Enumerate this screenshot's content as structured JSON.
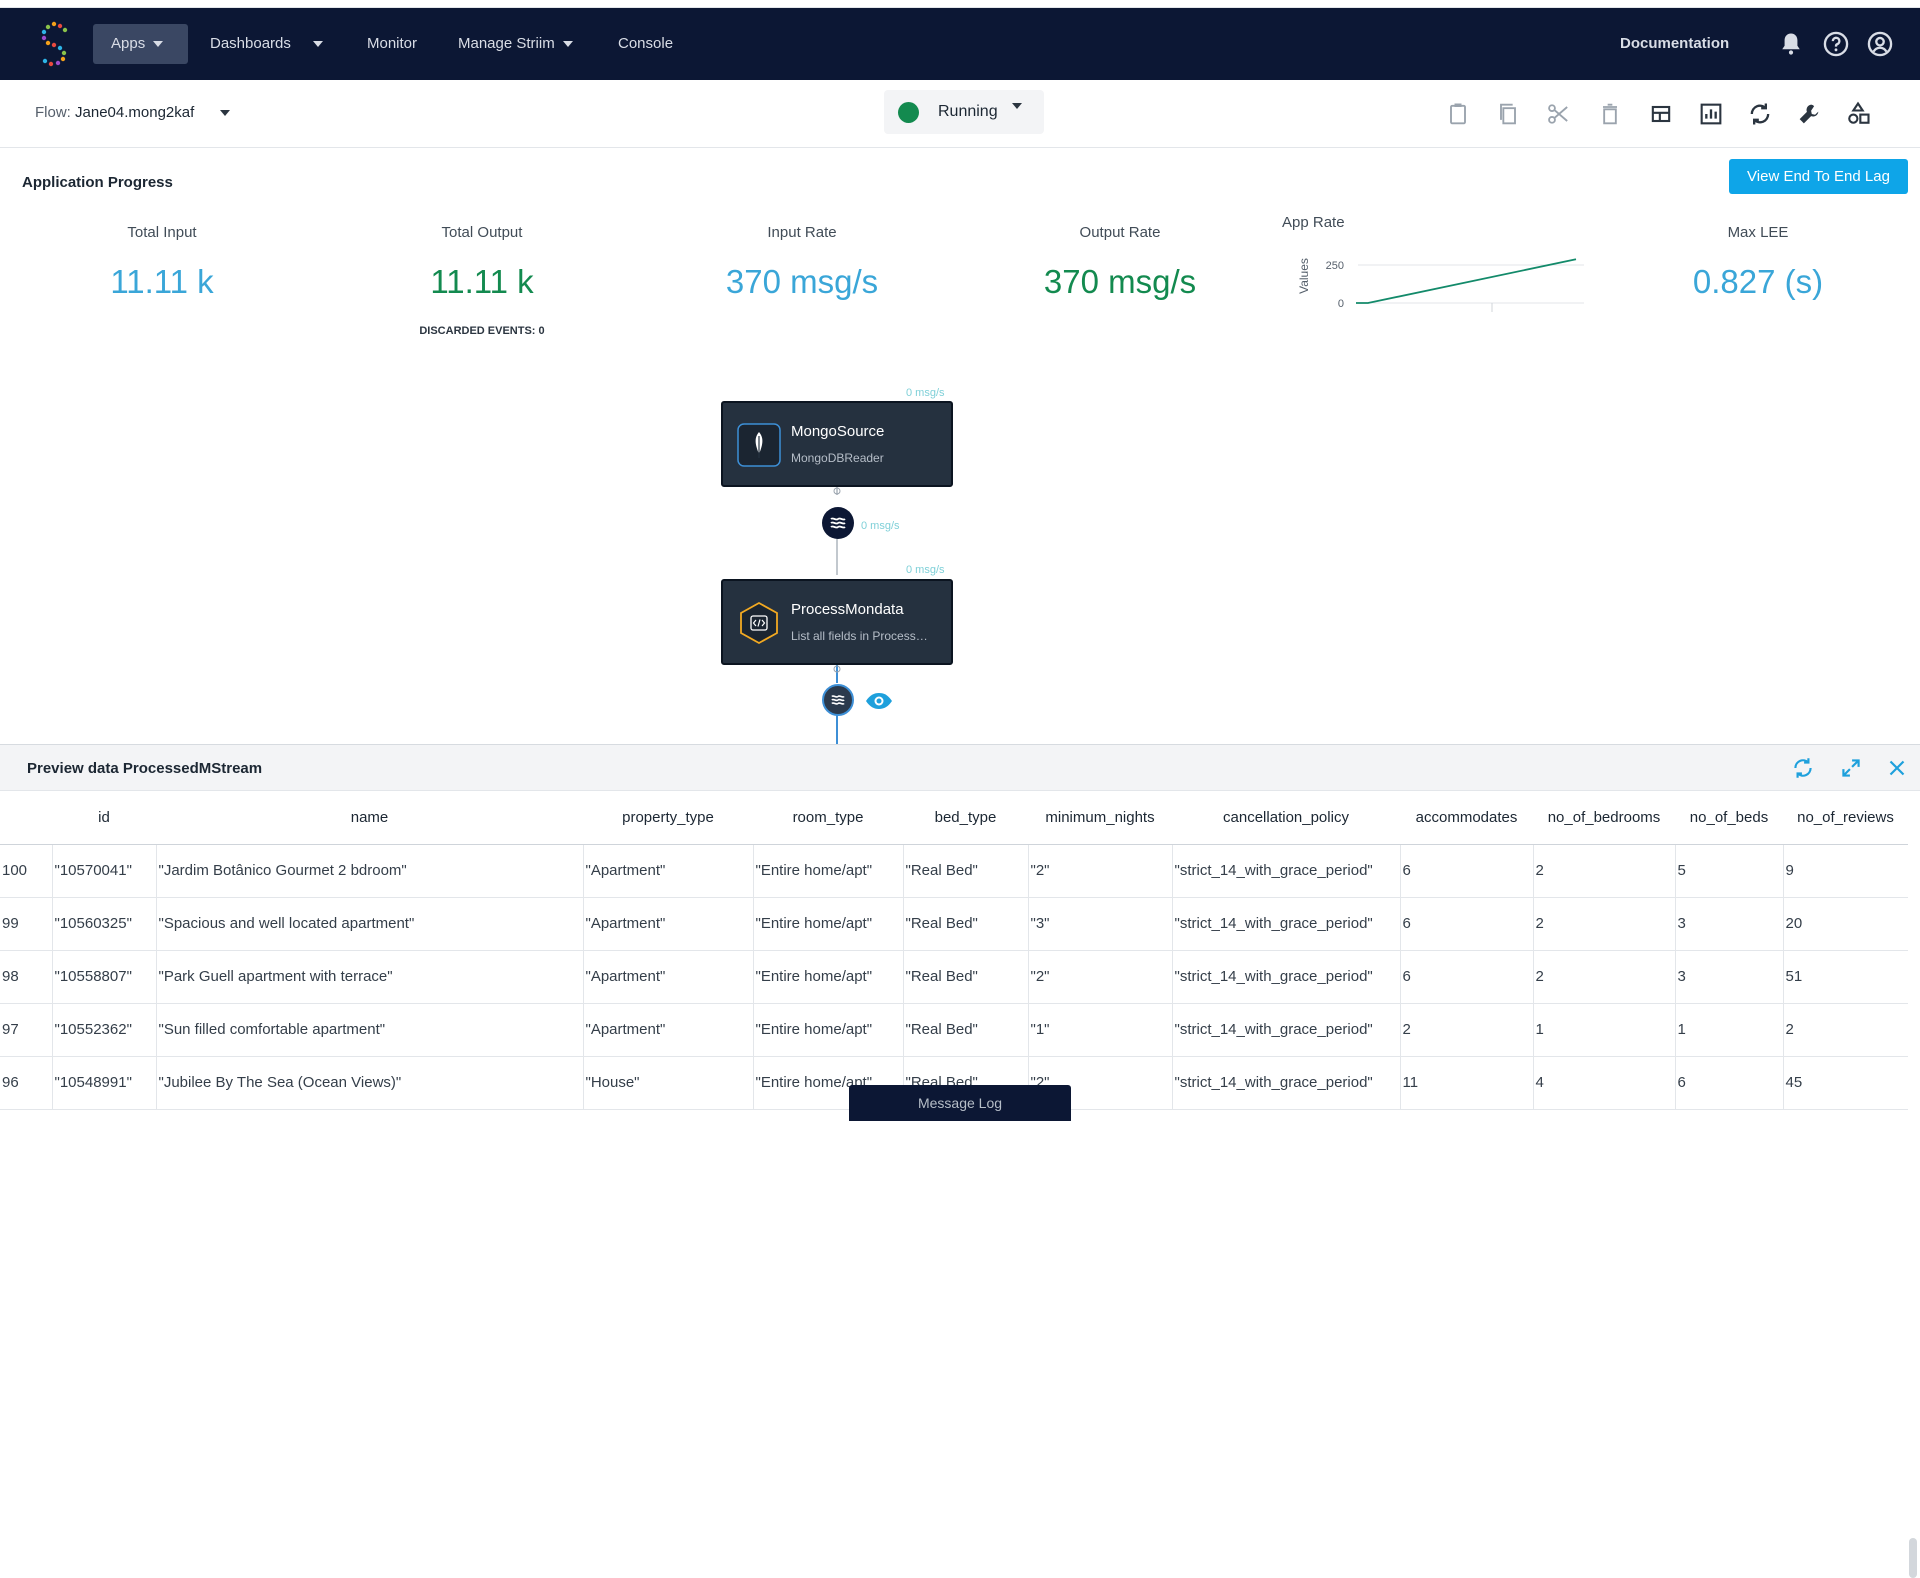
{
  "nav": {
    "items": [
      "Apps",
      "Dashboards",
      "Monitor",
      "Manage Striim",
      "Console"
    ],
    "documentation": "Documentation"
  },
  "toolbar": {
    "flow_prefix": "Flow:",
    "flow_name": "Jane04.mong2kaf",
    "status": "Running",
    "status_color": "#138a4f"
  },
  "progress": {
    "title": "Application Progress",
    "lag_button": "View End To End Lag",
    "metrics": [
      {
        "label": "Total Input",
        "value": "11.11 k"
      },
      {
        "label": "Total Output",
        "value": "11.11 k"
      },
      {
        "label": "Input Rate",
        "value": "370 msg/s"
      },
      {
        "label": "Output Rate",
        "value": "370 msg/s"
      },
      {
        "label": "Max LEE",
        "value": "0.827 (s)"
      }
    ],
    "discarded": "DISCARDED EVENTS: 0",
    "app_rate_label": "App Rate"
  },
  "chart_data": {
    "type": "line",
    "ylabel": "Values",
    "yticks": [
      "250",
      "0"
    ],
    "ylim": [
      0,
      250
    ],
    "series": [
      {
        "values": [
          0,
          370
        ]
      }
    ]
  },
  "flow": {
    "source": {
      "title": "MongoSource",
      "sub": "MongoDBReader",
      "rate": "0 msg/s"
    },
    "stream_rate": "0 msg/s",
    "process": {
      "title": "ProcessMondata",
      "sub": "List all fields in Process…",
      "rate": "0 msg/s"
    }
  },
  "preview": {
    "title": "Preview data ProcessedMStream",
    "columns": [
      "id",
      "name",
      "property_type",
      "room_type",
      "bed_type",
      "minimum_nights",
      "cancellation_policy",
      "accommodates",
      "no_of_bedrooms",
      "no_of_beds",
      "no_of_reviews"
    ],
    "rows": [
      [
        "100",
        "\"10570041\"",
        "\"Jardim Botânico Gourmet 2 bdroom\"",
        "\"Apartment\"",
        "\"Entire home/apt\"",
        "\"Real Bed\"",
        "\"2\"",
        "\"strict_14_with_grace_period\"",
        "6",
        "2",
        "5",
        "9"
      ],
      [
        "99",
        "\"10560325\"",
        "\"Spacious and well located apartment\"",
        "\"Apartment\"",
        "\"Entire home/apt\"",
        "\"Real Bed\"",
        "\"3\"",
        "\"strict_14_with_grace_period\"",
        "6",
        "2",
        "3",
        "20"
      ],
      [
        "98",
        "\"10558807\"",
        "\"Park Guell apartment with terrace\"",
        "\"Apartment\"",
        "\"Entire home/apt\"",
        "\"Real Bed\"",
        "\"2\"",
        "\"strict_14_with_grace_period\"",
        "6",
        "2",
        "3",
        "51"
      ],
      [
        "97",
        "\"10552362\"",
        "\"Sun filled comfortable apartment\"",
        "\"Apartment\"",
        "\"Entire home/apt\"",
        "\"Real Bed\"",
        "\"1\"",
        "\"strict_14_with_grace_period\"",
        "2",
        "1",
        "1",
        "2"
      ],
      [
        "96",
        "\"10548991\"",
        "\"Jubilee By The Sea (Ocean Views)\"",
        "\"House\"",
        "\"Entire home/apt\"",
        "\"Real Bed\"",
        "\"2\"",
        "\"strict_14_with_grace_period\"",
        "11",
        "4",
        "6",
        "45"
      ]
    ]
  },
  "message_log": "Message Log"
}
